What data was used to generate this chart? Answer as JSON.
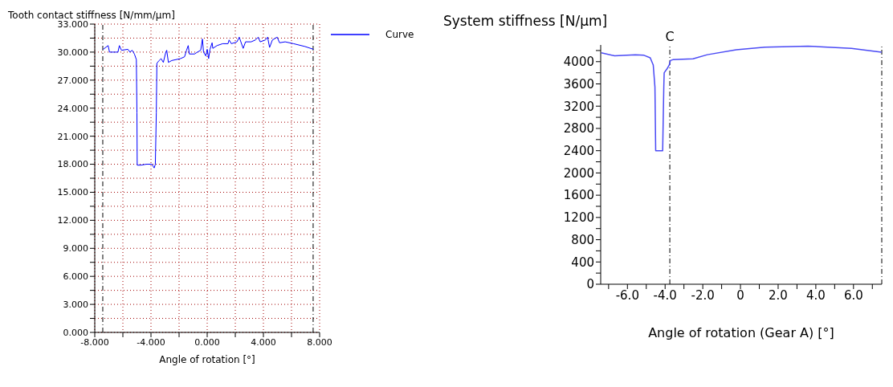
{
  "chart_data": [
    {
      "type": "line",
      "ylabel": "Tooth contact stiffness [N/mm/µm]",
      "xlabel": "Angle of rotation [°]",
      "grid": true,
      "legend": "top right",
      "xlim": [
        -8,
        8
      ],
      "xticks": [
        {
          "value": -8,
          "label": "-8.000"
        },
        {
          "value": -6,
          "label": null
        },
        {
          "value": -4,
          "label": "-4.000"
        },
        {
          "value": -2,
          "label": null
        },
        {
          "value": 0,
          "label": "0.000"
        },
        {
          "value": 2,
          "label": null
        },
        {
          "value": 4,
          "label": "4.000"
        },
        {
          "value": 6,
          "label": null
        },
        {
          "value": 8,
          "label": "8.000"
        }
      ],
      "ylim": [
        0,
        33
      ],
      "yticks": [
        {
          "value": 0,
          "label": "0.000"
        },
        {
          "value": 1.5,
          "label": null
        },
        {
          "value": 3,
          "label": "3.000"
        },
        {
          "value": 4.5,
          "label": null
        },
        {
          "value": 6,
          "label": "6.000"
        },
        {
          "value": 7.5,
          "label": null
        },
        {
          "value": 9,
          "label": "9.000"
        },
        {
          "value": 10.5,
          "label": null
        },
        {
          "value": 12,
          "label": "12.000"
        },
        {
          "value": 13.5,
          "label": null
        },
        {
          "value": 15,
          "label": "15.000"
        },
        {
          "value": 16.5,
          "label": null
        },
        {
          "value": 18,
          "label": "18.000"
        },
        {
          "value": 19.5,
          "label": null
        },
        {
          "value": 21,
          "label": "21.000"
        },
        {
          "value": 22.5,
          "label": null
        },
        {
          "value": 24,
          "label": "24.000"
        },
        {
          "value": 25.5,
          "label": null
        },
        {
          "value": 27,
          "label": "27.000"
        },
        {
          "value": 28.5,
          "label": null
        },
        {
          "value": 30,
          "label": "30.000"
        },
        {
          "value": 31.5,
          "label": null
        },
        {
          "value": 33,
          "label": "33.000"
        }
      ],
      "ref_lines": [
        {
          "axis": "x",
          "value": -7.43,
          "color": "#000000",
          "line_style": "dashed"
        },
        {
          "axis": "x",
          "value": 7.54,
          "color": "#000000",
          "line_style": "dashed"
        }
      ],
      "series": [
        {
          "name": "Curve",
          "color": "#0000ff",
          "x": [
            -7.4,
            -7.05,
            -6.95,
            -6.35,
            -6.25,
            -6.1,
            -5.64,
            -5.5,
            -5.34,
            -5.18,
            -5.04,
            -5.0,
            -4.98,
            -4.73,
            -4.33,
            -3.93,
            -3.77,
            -3.69,
            -3.62,
            -3.58,
            -3.42,
            -3.28,
            -3.12,
            -2.96,
            -2.88,
            -2.76,
            -2.52,
            -1.91,
            -1.61,
            -1.47,
            -1.35,
            -1.27,
            -0.9,
            -0.7,
            -0.46,
            -0.34,
            -0.26,
            -0.1,
            0.0,
            0.1,
            0.2,
            0.35,
            0.4,
            0.7,
            1.1,
            1.48,
            1.56,
            1.72,
            2.12,
            2.28,
            2.56,
            2.73,
            3.13,
            3.43,
            3.63,
            3.77,
            4.14,
            4.3,
            4.44,
            4.64,
            4.98,
            5.15,
            5.55,
            6.15,
            6.96,
            7.56
          ],
          "values": [
            30.3,
            30.7,
            30.0,
            30.0,
            30.7,
            30.2,
            30.3,
            30.0,
            30.2,
            29.8,
            29.2,
            23.5,
            17.9,
            17.9,
            18.0,
            18.0,
            17.6,
            18.0,
            23.5,
            28.8,
            29.1,
            29.3,
            28.9,
            29.9,
            30.2,
            28.9,
            29.1,
            29.3,
            29.5,
            30.2,
            30.7,
            29.8,
            29.8,
            30.0,
            30.2,
            31.4,
            30.0,
            29.6,
            30.3,
            29.3,
            30.3,
            31.0,
            30.4,
            30.7,
            30.9,
            30.9,
            31.3,
            30.9,
            31.1,
            31.6,
            30.4,
            31.1,
            31.1,
            31.3,
            31.6,
            31.1,
            31.3,
            31.6,
            30.5,
            31.3,
            31.6,
            31.0,
            31.1,
            30.9,
            30.6,
            30.3
          ]
        }
      ]
    },
    {
      "type": "line",
      "ylabel": "System stiffness [N/µm]",
      "xlabel": "Angle of rotation (Gear A) [°]",
      "xlim": [
        -7.42,
        7.5
      ],
      "xticks": [
        {
          "value": -7,
          "label": null
        },
        {
          "value": -6,
          "label": "-6.0"
        },
        {
          "value": -5,
          "label": null
        },
        {
          "value": -4,
          "label": "-4.0"
        },
        {
          "value": -3,
          "label": null
        },
        {
          "value": -2,
          "label": "-2.0"
        },
        {
          "value": -1,
          "label": null
        },
        0,
        {
          "value": 1,
          "label": null
        },
        {
          "value": 2,
          "label": "2.0"
        },
        {
          "value": 3,
          "label": null
        },
        {
          "value": 4,
          "label": "4.0"
        },
        {
          "value": 5,
          "label": null
        },
        {
          "value": 6,
          "label": "6.0"
        },
        {
          "value": 7,
          "label": null
        }
      ],
      "ylim": [
        0,
        4300
      ],
      "yticks": [
        0,
        {
          "value": 200,
          "label": null
        },
        400,
        {
          "value": 600,
          "label": null
        },
        800,
        {
          "value": 1000,
          "label": null
        },
        1200,
        {
          "value": 1400,
          "label": null
        },
        1600,
        {
          "value": 1800,
          "label": null
        },
        2000,
        {
          "value": 2200,
          "label": null
        },
        2400,
        {
          "value": 2600,
          "label": null
        },
        2800,
        {
          "value": 3000,
          "label": null
        },
        3200,
        {
          "value": 3400,
          "label": null
        },
        3600,
        {
          "value": 3800,
          "label": null
        },
        4000,
        {
          "value": 4200,
          "label": null
        }
      ],
      "ref_lines": [
        {
          "axis": "x",
          "value": -3.75,
          "label": "C",
          "color": "#000000",
          "line_style": "dashed"
        },
        {
          "axis": "x",
          "value": 7.5,
          "color": "#000000",
          "line_style": "dashed"
        }
      ],
      "series": [
        {
          "color": "#4a4af5",
          "x": [
            -7.39,
            -6.68,
            -5.58,
            -5.12,
            -4.79,
            -4.63,
            -4.54,
            -4.5,
            -4.13,
            -4.07,
            -4.05,
            -3.9,
            -3.78,
            -3.72,
            -3.59,
            -2.52,
            -1.76,
            -0.23,
            1.3,
            3.59,
            5.89,
            7.49
          ],
          "values": [
            4160,
            4105,
            4125,
            4115,
            4070,
            3940,
            3540,
            2400,
            2400,
            3540,
            3800,
            3870,
            3940,
            4020,
            4035,
            4050,
            4125,
            4215,
            4260,
            4280,
            4240,
            4170
          ]
        }
      ]
    }
  ]
}
